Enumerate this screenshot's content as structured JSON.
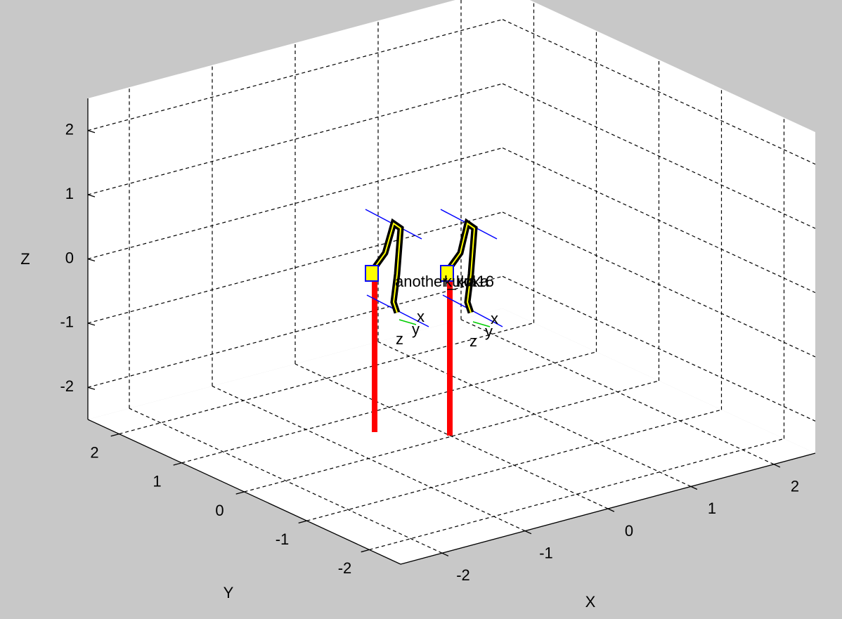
{
  "chart_data": {
    "type": "plot3d",
    "xlabel": "X",
    "ylabel": "Y",
    "zlabel": "Z",
    "xlim": [
      -2.5,
      2.5
    ],
    "ylim": [
      -2.5,
      2.5
    ],
    "zlim": [
      -2.5,
      2.5
    ],
    "xticks": [
      -2,
      -1,
      0,
      1,
      2
    ],
    "yticks": [
      -2,
      -1,
      0,
      1,
      2
    ],
    "zticks": [
      -2,
      -1,
      0,
      1,
      2
    ],
    "grid": true,
    "robots": [
      {
        "name": "another_kuka",
        "frame_labels": [
          "x",
          "y",
          "z"
        ]
      },
      {
        "name": "kuka16",
        "frame_labels": [
          "x",
          "y",
          "z"
        ]
      }
    ]
  }
}
